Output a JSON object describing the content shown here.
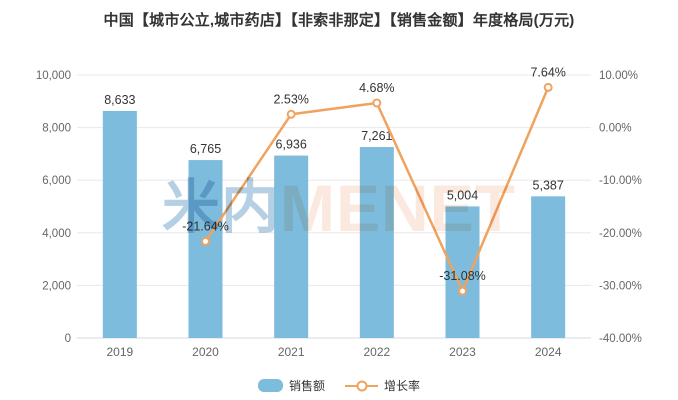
{
  "title": "中国【城市公立,城市药店】【非索非那定】【销售金额】年度格局(万元)",
  "watermark": {
    "cn": "米内",
    "en": "MENET"
  },
  "legend": [
    {
      "label": "销售额",
      "type": "bar"
    },
    {
      "label": "增长率",
      "type": "line"
    }
  ],
  "colors": {
    "bar": "#7dbcdc",
    "line": "#f0a25f",
    "grid": "#e8e8e8",
    "axis_line": "#d6dbe0",
    "tick_label": "#666666",
    "data_label": "#333333",
    "watermark_cn": "#b5cfe4",
    "watermark_en": "#fbe9df"
  },
  "chart_data": {
    "type": "bar",
    "subtype": "bar+line dual axis",
    "title": "中国【城市公立,城市药店】【非索非那定】【销售金额】年度格局(万元)",
    "categories": [
      "2019",
      "2020",
      "2021",
      "2022",
      "2023",
      "2024"
    ],
    "series": [
      {
        "name": "销售额",
        "type": "bar",
        "axis": "left",
        "values": [
          8633,
          6765,
          6936,
          7261,
          5004,
          5387
        ],
        "labels": [
          "8,633",
          "6,765",
          "6,936",
          "7,261",
          "5,004",
          "5,387"
        ]
      },
      {
        "name": "增长率",
        "type": "line",
        "axis": "right",
        "values": [
          null,
          -21.64,
          2.53,
          4.68,
          -31.08,
          7.64
        ],
        "labels": [
          null,
          "-21.64%",
          "2.53%",
          "4.68%",
          "-31.08%",
          "7.64%"
        ]
      }
    ],
    "left_axis": {
      "min": 0,
      "max": 10000,
      "tick_step": 2000,
      "ticks": [
        "0",
        "2,000",
        "4,000",
        "6,000",
        "8,000",
        "10,000"
      ]
    },
    "right_axis": {
      "min": -40,
      "max": 10,
      "tick_step": 10,
      "ticks": [
        "-40.00%",
        "-30.00%",
        "-20.00%",
        "-10.00%",
        "0.00%",
        "10.00%"
      ]
    },
    "grid": true,
    "legend_position": "bottom-center"
  }
}
